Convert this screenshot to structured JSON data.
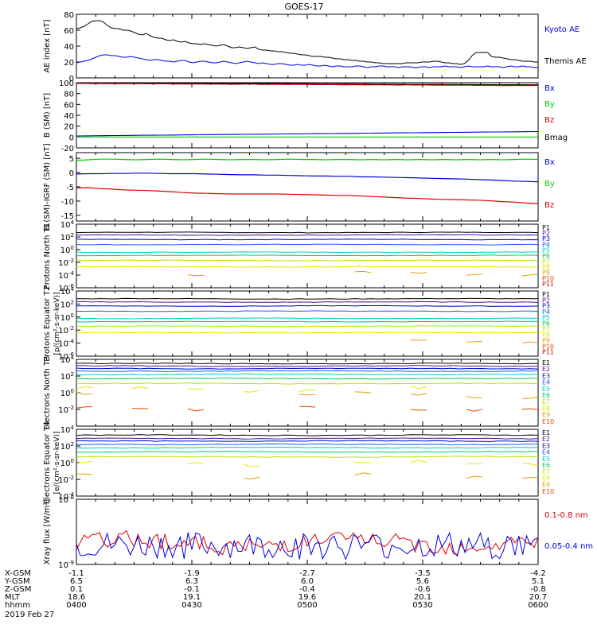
{
  "title": "GOES-17",
  "date": "2019 Feb 27",
  "orbit": {
    "labels": [
      "X-GSM",
      "Y-GSM",
      "Z-GSM",
      "MLT",
      "hhmm"
    ],
    "columns": [
      [
        "-1.1",
        "6.5",
        "0.1",
        "18.6",
        "0400"
      ],
      [
        "-1.9",
        "6.3",
        "-0.1",
        "19.1",
        "0430"
      ],
      [
        "-2.7",
        "6.0",
        "-0.4",
        "19.6",
        "0500"
      ],
      [
        "-3.5",
        "5.6",
        "-0.6",
        "20.1",
        "0530"
      ],
      [
        "-4.2",
        "5.1",
        "-0.8",
        "20.7",
        "0600"
      ]
    ]
  },
  "colors": {
    "black": "#000000",
    "blue": "#0000dd",
    "green": "#00cc00",
    "red": "#dd0000",
    "P1": "#000000",
    "P2": "#5a0aa0",
    "P3": "#0000c8",
    "P4": "#1e5aff",
    "P5": "#00c8c8",
    "P6": "#00c864",
    "P7": "#b4e600",
    "P8": "#e6e600",
    "P9": "#e6a000",
    "P10": "#e64600",
    "P11": "#c80000"
  },
  "chart_data": [
    {
      "type": "line",
      "panel": "ae",
      "ylabel": "AE index [nT]",
      "ylim": [
        0,
        80
      ],
      "yticks": [
        "0",
        "20",
        "40",
        "60",
        "80"
      ],
      "xlim": [
        0,
        120
      ],
      "xticks": [
        "0400",
        "0430",
        "0500",
        "0530",
        "0600"
      ],
      "series": [
        {
          "name": "Kyoto AE",
          "color": "#0000dd",
          "values": [
            19,
            20,
            21,
            22,
            24,
            26,
            28,
            29,
            29,
            28,
            28,
            27,
            26,
            26,
            27,
            26,
            25,
            24,
            23,
            22,
            23,
            23,
            22,
            21,
            21,
            20,
            21,
            22,
            22,
            20,
            19,
            20,
            21,
            21,
            20,
            19,
            19,
            20,
            21,
            20,
            19,
            18,
            19,
            20,
            21,
            20,
            19,
            18,
            19,
            18,
            17,
            17,
            18,
            18,
            17,
            16,
            16,
            17,
            16,
            16,
            17,
            16,
            15,
            15,
            16,
            15,
            14,
            15,
            15,
            14,
            14,
            14,
            15,
            15,
            14,
            13,
            14,
            14,
            15,
            15,
            14,
            14,
            14,
            13,
            14,
            14,
            14,
            13,
            13,
            14,
            14,
            13,
            14,
            14,
            14,
            15,
            14,
            14,
            14,
            13,
            14,
            15,
            14,
            14,
            14,
            14,
            15,
            14,
            14,
            14,
            13,
            14,
            15,
            14,
            14,
            15,
            14,
            14,
            13,
            13
          ]
        },
        {
          "name": "Themis AE",
          "color": "#000000",
          "values": [
            62,
            63,
            65,
            68,
            71,
            72,
            72,
            70,
            66,
            63,
            62,
            62,
            60,
            60,
            59,
            57,
            55,
            54,
            56,
            53,
            51,
            50,
            50,
            48,
            47,
            48,
            46,
            45,
            46,
            44,
            43,
            43,
            42,
            43,
            42,
            41,
            40,
            41,
            42,
            40,
            38,
            38,
            39,
            38,
            37,
            38,
            39,
            36,
            35,
            35,
            34,
            34,
            33,
            33,
            32,
            31,
            31,
            30,
            29,
            29,
            28,
            27,
            27,
            27,
            26,
            26,
            25,
            24,
            24,
            23,
            23,
            22,
            22,
            21,
            21,
            20,
            20,
            19,
            19,
            18,
            18,
            18,
            18,
            18,
            18,
            19,
            19,
            19,
            19,
            20,
            20,
            20,
            21,
            21,
            20,
            19,
            19,
            18,
            18,
            17,
            18,
            22,
            28,
            32,
            32,
            32,
            32,
            27,
            26,
            26,
            25,
            24,
            23,
            23,
            22,
            21,
            21,
            21,
            20,
            20
          ]
        }
      ]
    },
    {
      "type": "line",
      "panel": "bsm",
      "ylabel": "B (SM) [nT]",
      "ylim": [
        -20,
        100
      ],
      "yticks": [
        "-20",
        "0",
        "20",
        "40",
        "60",
        "80",
        "100"
      ],
      "xlim": [
        0,
        120
      ],
      "series": [
        {
          "name": "Bx",
          "color": "#0000dd",
          "start": 2,
          "end": 10
        },
        {
          "name": "By",
          "color": "#00cc00",
          "start": 0,
          "end": 0
        },
        {
          "name": "Bz",
          "color": "#dd0000",
          "start": 99,
          "end": 95
        },
        {
          "name": "Bmag",
          "color": "#000000",
          "start": 100,
          "end": 96
        }
      ]
    },
    {
      "type": "line",
      "panel": "bsmigrf",
      "ylabel": "B (SM)-IGRF (SM) [nT]",
      "ylim": [
        -17,
        7
      ],
      "yticks": [
        "-15",
        "-10",
        "-5",
        "0",
        "5"
      ],
      "xlim": [
        0,
        120
      ],
      "series": [
        {
          "name": "Bx",
          "color": "#0000dd",
          "values": [
            -0.5,
            -0.4,
            -0.4,
            -0.3,
            -0.3,
            -0.2,
            -0.2,
            -0.3,
            -0.4,
            -0.4,
            -0.4,
            -0.5,
            -0.6,
            -0.7,
            -0.8,
            -0.8,
            -0.9,
            -0.9,
            -1.0,
            -1.1,
            -1.2,
            -1.2,
            -1.3,
            -1.3,
            -1.5,
            -1.5,
            -1.6,
            -1.7,
            -1.8,
            -1.9,
            -2.0,
            -2.1,
            -2.2,
            -2.3,
            -2.5,
            -2.6,
            -2.8,
            -3.0,
            -3.1,
            -3.2
          ]
        },
        {
          "name": "By",
          "color": "#00cc00",
          "values": [
            4.3,
            4.5,
            4.7,
            4.7,
            4.6,
            4.5,
            4.6,
            4.7,
            4.6,
            4.5,
            4.6,
            4.7,
            4.6,
            4.5,
            4.6,
            4.6,
            4.5,
            4.6,
            4.7,
            4.6,
            4.6,
            4.5,
            4.6,
            4.6,
            4.5,
            4.6,
            4.5,
            4.6,
            4.5,
            4.6,
            4.5,
            4.6,
            4.5,
            4.6,
            4.5,
            4.6,
            4.5,
            4.6,
            4.7,
            4.6
          ]
        },
        {
          "name": "Bz",
          "color": "#dd0000",
          "values": [
            -5.4,
            -5.3,
            -5.6,
            -5.8,
            -6.1,
            -6.2,
            -6.3,
            -6.5,
            -6.7,
            -7.0,
            -7.2,
            -7.3,
            -7.4,
            -7.5,
            -7.5,
            -7.5,
            -7.5,
            -7.5,
            -7.6,
            -7.7,
            -7.8,
            -7.9,
            -8.0,
            -8.0,
            -8.2,
            -8.4,
            -8.6,
            -8.8,
            -9.0,
            -9.1,
            -9.3,
            -9.4,
            -9.5,
            -9.6,
            -9.7,
            -9.9,
            -10.2,
            -10.4,
            -10.7,
            -10.9
          ]
        }
      ]
    },
    {
      "type": "line",
      "panel": "protons-t1",
      "ylabel": "Protons North T1",
      "ylim": [
        -6,
        4
      ],
      "yticks": [
        "10^4",
        "10^2",
        "10^0",
        "10^-2",
        "10^-4",
        "10^-6"
      ],
      "xlim": [
        0,
        120
      ],
      "channels": [
        "P1",
        "P2",
        "P3",
        "P4",
        "P5",
        "P6",
        "P7",
        "P8",
        "P9",
        "P10",
        "P11"
      ],
      "levels": [
        2.7,
        2.3,
        1.6,
        0.8,
        -0.4,
        -0.9,
        -1.7,
        -2.7,
        -3.8,
        null,
        null
      ]
    },
    {
      "type": "line",
      "panel": "protons-t2",
      "ylabel": "Protons Equator T2",
      "unit": "[p/(cm²-s-sr-keV)]",
      "ylim": [
        -6,
        4
      ],
      "yticks": [
        "10^4",
        "10^2",
        "10^0",
        "10^-2",
        "10^-4",
        "10^-6"
      ],
      "xlim": [
        0,
        120
      ],
      "channels": [
        "P1",
        "P2",
        "P3",
        "P4",
        "P5",
        "P6",
        "P7",
        "P8",
        "P9",
        "P10",
        "P11"
      ],
      "levels": [
        2.8,
        2.3,
        1.7,
        0.9,
        -0.2,
        -0.7,
        -1.4,
        -2.4,
        -3.6,
        null,
        null
      ]
    },
    {
      "type": "line",
      "panel": "electrons-t3",
      "ylabel": "Electrons North T3",
      "ylim": [
        -4,
        4
      ],
      "yticks": [
        "10^4",
        "10^2",
        "10^0",
        "10^-2"
      ],
      "xlim": [
        0,
        120
      ],
      "channels": [
        "E1",
        "E2",
        "E3",
        "E4",
        "E5",
        "E6",
        "E7",
        "E8",
        "E9",
        "E10"
      ],
      "levels": [
        3.5,
        3.2,
        2.9,
        2.6,
        2.2,
        1.7,
        1.1,
        0.4,
        -0.3,
        -1.8
      ]
    },
    {
      "type": "line",
      "panel": "electrons-t4",
      "ylabel": "Electrons Equator T4",
      "unit": "[e/(cm²-s-sr-keV)]",
      "ylim": [
        -4,
        4
      ],
      "yticks": [
        "10^4",
        "10^2",
        "10^0",
        "10^-2",
        "10^-4"
      ],
      "xlim": [
        0,
        120
      ],
      "channels": [
        "E1",
        "E2",
        "E3",
        "E4",
        "E5",
        "E6",
        "E7",
        "E8",
        "E9",
        "E10"
      ],
      "levels": [
        3.3,
        2.9,
        2.6,
        2.2,
        1.8,
        1.3,
        0.7,
        -0.1,
        -1.6,
        null
      ]
    },
    {
      "type": "line",
      "panel": "xray",
      "ylabel": "Xray flux [W/m²]",
      "yticks": [
        "10^-8",
        "10^-9"
      ],
      "xlim": [
        0,
        120
      ],
      "series": [
        {
          "name": "0.1-0.8 nm",
          "color": "#dd0000"
        },
        {
          "name": "0.05-0.4 nm",
          "color": "#0000dd"
        }
      ]
    }
  ]
}
